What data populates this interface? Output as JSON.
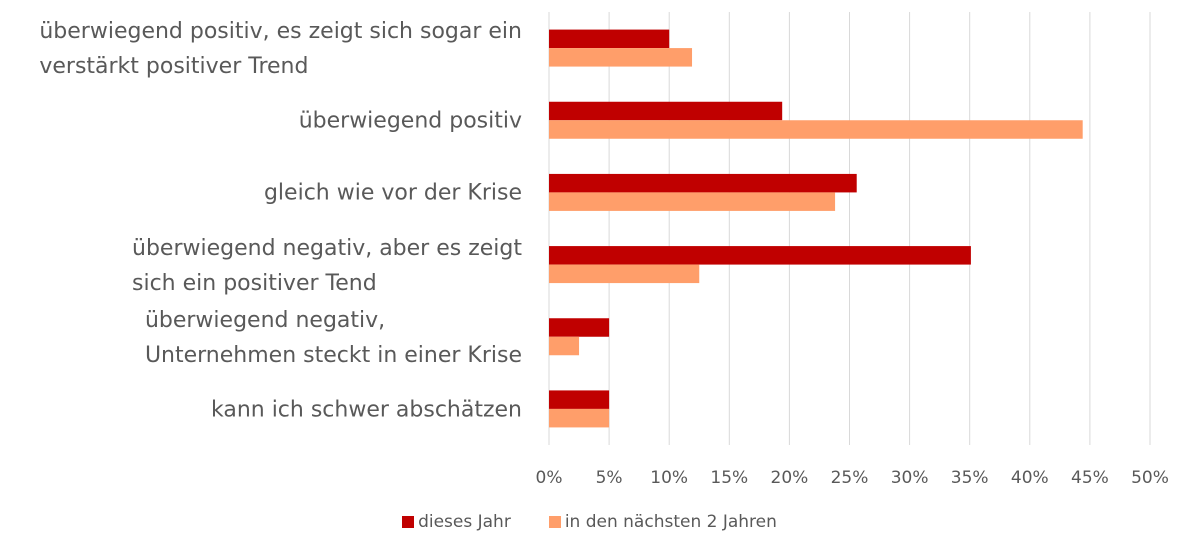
{
  "chart_data": {
    "type": "bar",
    "orientation": "horizontal",
    "categories": [
      "überwiegend positiv, es zeigt sich sogar ein\nverstärkt positiver Trend",
      "überwiegend positiv",
      "gleich wie vor der Krise",
      "überwiegend negativ, aber es zeigt\nsich ein positiver Tend",
      "überwiegend negativ,\nUnternehmen steckt in einer Krise",
      "kann ich schwer abschätzen"
    ],
    "series": [
      {
        "name": "dieses Jahr",
        "color": "#c00000",
        "values": [
          10,
          19.4,
          25.6,
          35.1,
          5,
          5
        ]
      },
      {
        "name": "in den nächsten 2 Jahren",
        "color": "#ff9e6a",
        "values": [
          11.9,
          44.4,
          23.8,
          12.5,
          2.5,
          5
        ]
      }
    ],
    "xlim": [
      0,
      50
    ],
    "xticks": [
      {
        "value": 0,
        "label": "0%"
      },
      {
        "value": 5,
        "label": "5%"
      },
      {
        "value": 10,
        "label": "10%"
      },
      {
        "value": 15,
        "label": "15%"
      },
      {
        "value": 20,
        "label": "20%"
      },
      {
        "value": 25,
        "label": "25%"
      },
      {
        "value": 30,
        "label": "30%"
      },
      {
        "value": 35,
        "label": "35%"
      },
      {
        "value": 40,
        "label": "40%"
      },
      {
        "value": 45,
        "label": "45%"
      },
      {
        "value": 50,
        "label": "50%"
      }
    ],
    "grid": true,
    "legend": "bottom"
  }
}
